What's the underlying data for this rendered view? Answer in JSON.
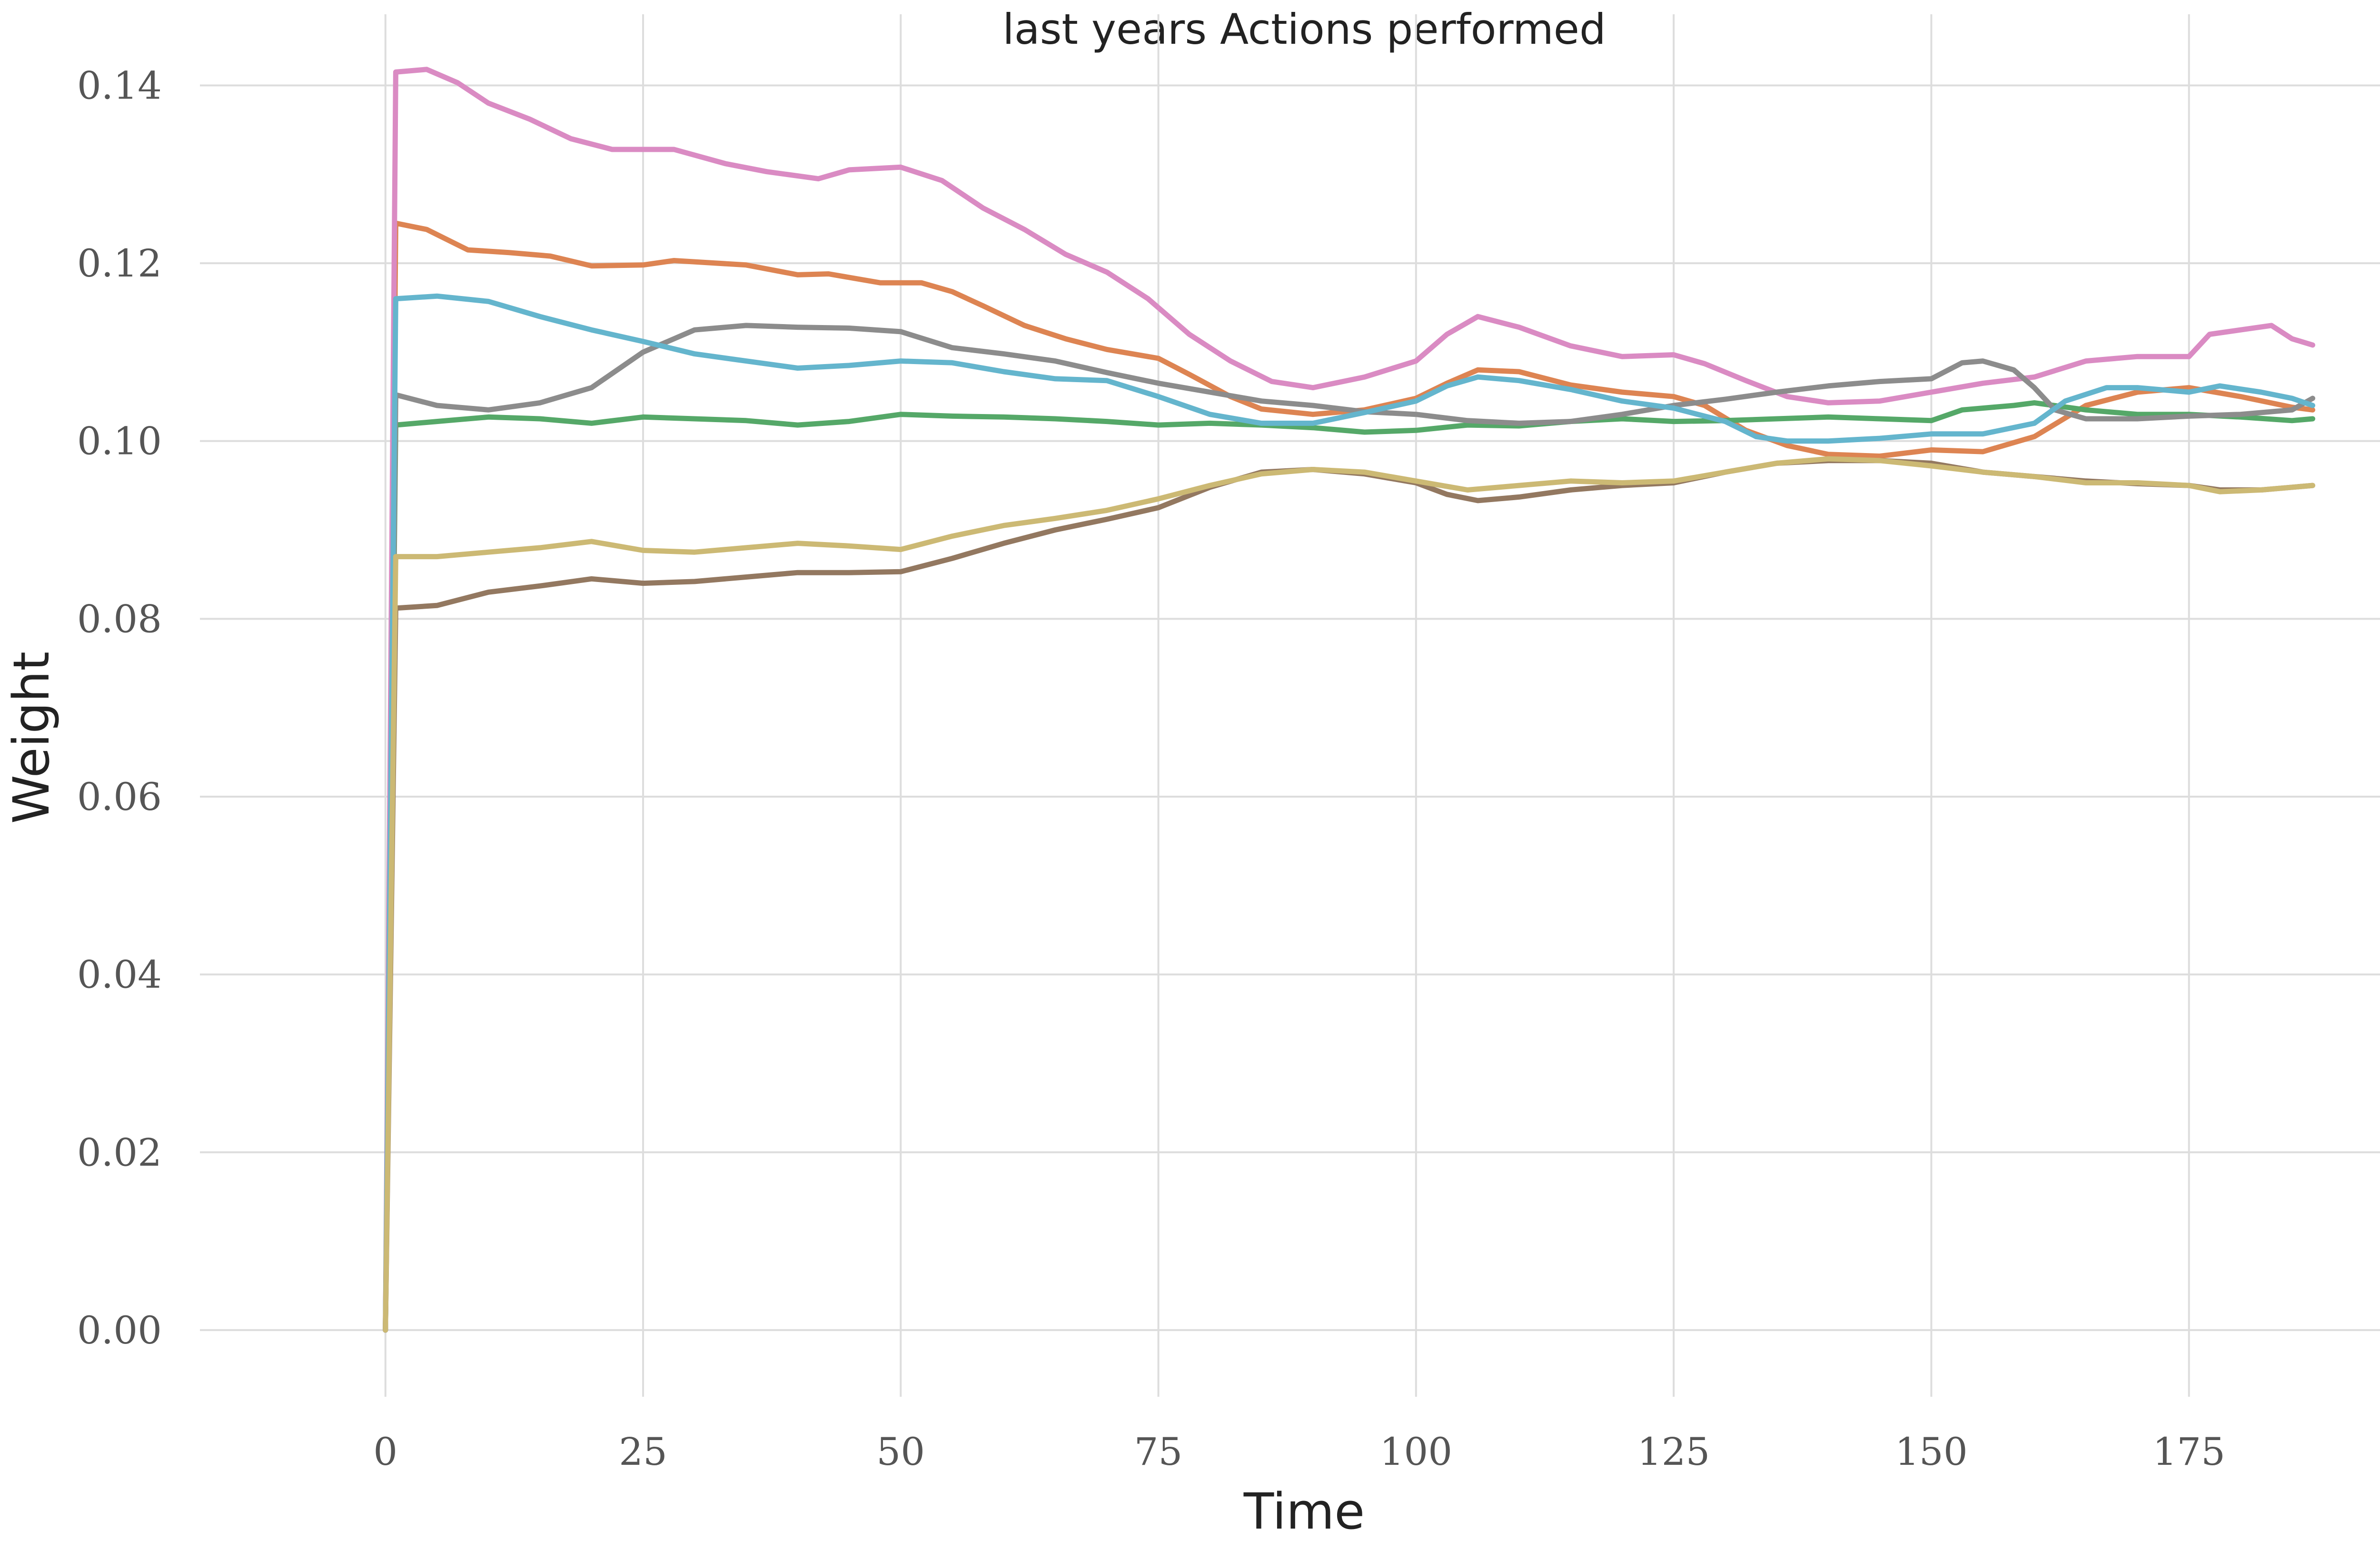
{
  "chart_data": {
    "type": "line",
    "title": "last years Actions performed",
    "xlabel": "Time",
    "ylabel": "Weight",
    "xlim": [
      -18,
      197
    ],
    "ylim": [
      -0.0075,
      0.148
    ],
    "xticks": [
      0,
      25,
      50,
      75,
      100,
      125,
      150,
      175
    ],
    "yticks": [
      0.0,
      0.02,
      0.04,
      0.06,
      0.08,
      0.1,
      0.12,
      0.14
    ],
    "xtick_labels": [
      "0",
      "25",
      "50",
      "75",
      "100",
      "125",
      "150",
      "175"
    ],
    "ytick_labels": [
      "0.00",
      "0.02",
      "0.04",
      "0.06",
      "0.08",
      "0.10",
      "0.12",
      "0.14"
    ],
    "grid": true,
    "legend": "none",
    "series": [
      {
        "color": "#dd8452",
        "points": [
          [
            0,
            0
          ],
          [
            1,
            0.1245
          ],
          [
            4,
            0.1238
          ],
          [
            8,
            0.1215
          ],
          [
            12,
            0.1212
          ],
          [
            16,
            0.1208
          ],
          [
            20,
            0.1197
          ],
          [
            25,
            0.1198
          ],
          [
            28,
            0.1203
          ],
          [
            35,
            0.1198
          ],
          [
            40,
            0.1187
          ],
          [
            43,
            0.1188
          ],
          [
            48,
            0.1178
          ],
          [
            52,
            0.1178
          ],
          [
            55,
            0.1168
          ],
          [
            58,
            0.1152
          ],
          [
            62,
            0.113
          ],
          [
            66,
            0.1115
          ],
          [
            70,
            0.1103
          ],
          [
            75,
            0.1093
          ],
          [
            78,
            0.1075
          ],
          [
            82,
            0.105
          ],
          [
            85,
            0.1036
          ],
          [
            90,
            0.103
          ],
          [
            95,
            0.1035
          ],
          [
            100,
            0.1048
          ],
          [
            103,
            0.1065
          ],
          [
            106,
            0.108
          ],
          [
            110,
            0.1078
          ],
          [
            115,
            0.1063
          ],
          [
            120,
            0.1055
          ],
          [
            125,
            0.105
          ],
          [
            128,
            0.104
          ],
          [
            132,
            0.1012
          ],
          [
            136,
            0.0995
          ],
          [
            140,
            0.0985
          ],
          [
            145,
            0.0983
          ],
          [
            150,
            0.099
          ],
          [
            155,
            0.0988
          ],
          [
            160,
            0.1005
          ],
          [
            165,
            0.104
          ],
          [
            170,
            0.1055
          ],
          [
            175,
            0.106
          ],
          [
            180,
            0.105
          ],
          [
            185,
            0.1038
          ],
          [
            187,
            0.1035
          ]
        ]
      },
      {
        "color": "#55a868",
        "points": [
          [
            0,
            0
          ],
          [
            1,
            0.1018
          ],
          [
            5,
            0.1022
          ],
          [
            10,
            0.1027
          ],
          [
            15,
            0.1025
          ],
          [
            20,
            0.102
          ],
          [
            25,
            0.1027
          ],
          [
            30,
            0.1025
          ],
          [
            35,
            0.1023
          ],
          [
            40,
            0.1018
          ],
          [
            45,
            0.1022
          ],
          [
            50,
            0.103
          ],
          [
            55,
            0.1028
          ],
          [
            60,
            0.1027
          ],
          [
            65,
            0.1025
          ],
          [
            70,
            0.1022
          ],
          [
            75,
            0.1018
          ],
          [
            80,
            0.102
          ],
          [
            85,
            0.1018
          ],
          [
            90,
            0.1015
          ],
          [
            95,
            0.101
          ],
          [
            100,
            0.1012
          ],
          [
            105,
            0.1018
          ],
          [
            110,
            0.1017
          ],
          [
            115,
            0.1022
          ],
          [
            120,
            0.1025
          ],
          [
            125,
            0.1022
          ],
          [
            130,
            0.1023
          ],
          [
            135,
            0.1025
          ],
          [
            140,
            0.1027
          ],
          [
            145,
            0.1025
          ],
          [
            150,
            0.1023
          ],
          [
            153,
            0.1035
          ],
          [
            158,
            0.104
          ],
          [
            160,
            0.1043
          ],
          [
            165,
            0.1035
          ],
          [
            170,
            0.103
          ],
          [
            175,
            0.103
          ],
          [
            180,
            0.1027
          ],
          [
            185,
            0.1023
          ],
          [
            187,
            0.1025
          ]
        ]
      },
      {
        "color": "#da8bc3",
        "points": [
          [
            0,
            0
          ],
          [
            1,
            0.1415
          ],
          [
            4,
            0.1418
          ],
          [
            7,
            0.1403
          ],
          [
            10,
            0.138
          ],
          [
            14,
            0.1362
          ],
          [
            18,
            0.134
          ],
          [
            22,
            0.1328
          ],
          [
            28,
            0.1328
          ],
          [
            33,
            0.1312
          ],
          [
            37,
            0.1303
          ],
          [
            42,
            0.1295
          ],
          [
            45,
            0.1305
          ],
          [
            50,
            0.1308
          ],
          [
            54,
            0.1293
          ],
          [
            58,
            0.1262
          ],
          [
            62,
            0.1238
          ],
          [
            66,
            0.121
          ],
          [
            70,
            0.119
          ],
          [
            74,
            0.116
          ],
          [
            78,
            0.112
          ],
          [
            82,
            0.109
          ],
          [
            86,
            0.1067
          ],
          [
            90,
            0.106
          ],
          [
            95,
            0.1072
          ],
          [
            100,
            0.109
          ],
          [
            103,
            0.112
          ],
          [
            106,
            0.114
          ],
          [
            110,
            0.1128
          ],
          [
            115,
            0.1107
          ],
          [
            120,
            0.1095
          ],
          [
            125,
            0.1097
          ],
          [
            128,
            0.1087
          ],
          [
            132,
            0.1068
          ],
          [
            136,
            0.105
          ],
          [
            140,
            0.1043
          ],
          [
            145,
            0.1045
          ],
          [
            150,
            0.1055
          ],
          [
            155,
            0.1065
          ],
          [
            160,
            0.1072
          ],
          [
            165,
            0.109
          ],
          [
            170,
            0.1095
          ],
          [
            175,
            0.1095
          ],
          [
            177,
            0.112
          ],
          [
            180,
            0.1125
          ],
          [
            183,
            0.113
          ],
          [
            185,
            0.1115
          ],
          [
            187,
            0.1108
          ]
        ]
      },
      {
        "color": "#8c8c8c",
        "points": [
          [
            0,
            0
          ],
          [
            1,
            0.1052
          ],
          [
            5,
            0.104
          ],
          [
            10,
            0.1035
          ],
          [
            15,
            0.1043
          ],
          [
            20,
            0.106
          ],
          [
            25,
            0.11
          ],
          [
            30,
            0.1125
          ],
          [
            35,
            0.113
          ],
          [
            40,
            0.1128
          ],
          [
            45,
            0.1127
          ],
          [
            50,
            0.1123
          ],
          [
            55,
            0.1105
          ],
          [
            60,
            0.1098
          ],
          [
            65,
            0.109
          ],
          [
            70,
            0.1077
          ],
          [
            75,
            0.1065
          ],
          [
            80,
            0.1055
          ],
          [
            85,
            0.1045
          ],
          [
            90,
            0.104
          ],
          [
            95,
            0.1033
          ],
          [
            100,
            0.103
          ],
          [
            105,
            0.1023
          ],
          [
            110,
            0.102
          ],
          [
            115,
            0.1022
          ],
          [
            120,
            0.103
          ],
          [
            125,
            0.104
          ],
          [
            130,
            0.1047
          ],
          [
            135,
            0.1055
          ],
          [
            140,
            0.1062
          ],
          [
            145,
            0.1067
          ],
          [
            150,
            0.107
          ],
          [
            153,
            0.1088
          ],
          [
            155,
            0.109
          ],
          [
            158,
            0.108
          ],
          [
            160,
            0.106
          ],
          [
            162,
            0.1035
          ],
          [
            165,
            0.1025
          ],
          [
            170,
            0.1025
          ],
          [
            175,
            0.1028
          ],
          [
            180,
            0.103
          ],
          [
            185,
            0.1035
          ],
          [
            187,
            0.1048
          ]
        ]
      },
      {
        "color": "#64b5cd",
        "points": [
          [
            0,
            0
          ],
          [
            1,
            0.116
          ],
          [
            5,
            0.1163
          ],
          [
            10,
            0.1157
          ],
          [
            15,
            0.114
          ],
          [
            20,
            0.1125
          ],
          [
            25,
            0.1112
          ],
          [
            30,
            0.1098
          ],
          [
            35,
            0.109
          ],
          [
            40,
            0.1082
          ],
          [
            45,
            0.1085
          ],
          [
            50,
            0.109
          ],
          [
            55,
            0.1088
          ],
          [
            60,
            0.1078
          ],
          [
            65,
            0.107
          ],
          [
            70,
            0.1068
          ],
          [
            75,
            0.105
          ],
          [
            80,
            0.103
          ],
          [
            85,
            0.102
          ],
          [
            90,
            0.102
          ],
          [
            95,
            0.1032
          ],
          [
            100,
            0.1045
          ],
          [
            103,
            0.1062
          ],
          [
            106,
            0.1072
          ],
          [
            110,
            0.1068
          ],
          [
            115,
            0.1058
          ],
          [
            120,
            0.1045
          ],
          [
            125,
            0.1037
          ],
          [
            130,
            0.1022
          ],
          [
            133,
            0.1005
          ],
          [
            136,
            0.1
          ],
          [
            140,
            0.1
          ],
          [
            145,
            0.1003
          ],
          [
            150,
            0.1008
          ],
          [
            155,
            0.1008
          ],
          [
            160,
            0.102
          ],
          [
            163,
            0.1045
          ],
          [
            167,
            0.106
          ],
          [
            170,
            0.106
          ],
          [
            175,
            0.1055
          ],
          [
            178,
            0.1062
          ],
          [
            182,
            0.1055
          ],
          [
            185,
            0.1048
          ],
          [
            187,
            0.104
          ]
        ]
      },
      {
        "color": "#937860",
        "points": [
          [
            0,
            0
          ],
          [
            1,
            0.0812
          ],
          [
            5,
            0.0815
          ],
          [
            10,
            0.083
          ],
          [
            15,
            0.0837
          ],
          [
            20,
            0.0845
          ],
          [
            25,
            0.084
          ],
          [
            30,
            0.0842
          ],
          [
            35,
            0.0847
          ],
          [
            40,
            0.0852
          ],
          [
            45,
            0.0852
          ],
          [
            50,
            0.0853
          ],
          [
            55,
            0.0868
          ],
          [
            60,
            0.0885
          ],
          [
            65,
            0.09
          ],
          [
            70,
            0.0912
          ],
          [
            75,
            0.0925
          ],
          [
            80,
            0.0948
          ],
          [
            85,
            0.0965
          ],
          [
            90,
            0.0968
          ],
          [
            95,
            0.0963
          ],
          [
            100,
            0.0953
          ],
          [
            103,
            0.094
          ],
          [
            106,
            0.0933
          ],
          [
            110,
            0.0937
          ],
          [
            115,
            0.0945
          ],
          [
            120,
            0.095
          ],
          [
            125,
            0.0953
          ],
          [
            130,
            0.0965
          ],
          [
            135,
            0.0975
          ],
          [
            140,
            0.0978
          ],
          [
            145,
            0.0978
          ],
          [
            150,
            0.0975
          ],
          [
            155,
            0.0965
          ],
          [
            160,
            0.096
          ],
          [
            165,
            0.0955
          ],
          [
            170,
            0.0952
          ],
          [
            175,
            0.095
          ],
          [
            178,
            0.0945
          ],
          [
            182,
            0.0945
          ],
          [
            187,
            0.095
          ]
        ]
      },
      {
        "color": "#ccb974",
        "points": [
          [
            0,
            0
          ],
          [
            1,
            0.087
          ],
          [
            5,
            0.087
          ],
          [
            10,
            0.0875
          ],
          [
            15,
            0.088
          ],
          [
            20,
            0.0887
          ],
          [
            25,
            0.0877
          ],
          [
            30,
            0.0875
          ],
          [
            35,
            0.088
          ],
          [
            40,
            0.0885
          ],
          [
            45,
            0.0882
          ],
          [
            50,
            0.0878
          ],
          [
            55,
            0.0893
          ],
          [
            60,
            0.0905
          ],
          [
            65,
            0.0913
          ],
          [
            70,
            0.0922
          ],
          [
            75,
            0.0935
          ],
          [
            80,
            0.095
          ],
          [
            85,
            0.0963
          ],
          [
            90,
            0.0968
          ],
          [
            95,
            0.0965
          ],
          [
            100,
            0.0955
          ],
          [
            105,
            0.0945
          ],
          [
            110,
            0.095
          ],
          [
            115,
            0.0955
          ],
          [
            120,
            0.0953
          ],
          [
            125,
            0.0955
          ],
          [
            130,
            0.0965
          ],
          [
            135,
            0.0975
          ],
          [
            140,
            0.098
          ],
          [
            145,
            0.0978
          ],
          [
            150,
            0.0972
          ],
          [
            155,
            0.0965
          ],
          [
            160,
            0.096
          ],
          [
            165,
            0.0953
          ],
          [
            170,
            0.0953
          ],
          [
            175,
            0.095
          ],
          [
            178,
            0.0943
          ],
          [
            182,
            0.0945
          ],
          [
            187,
            0.095
          ]
        ]
      }
    ]
  }
}
